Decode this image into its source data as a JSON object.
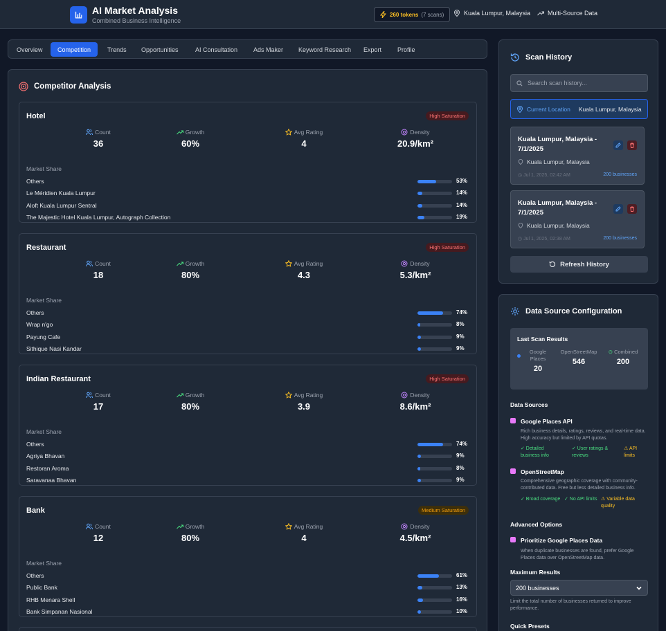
{
  "header": {
    "title": "AI Market Analysis",
    "subtitle": "Combined Business Intelligence",
    "tokens": "260 tokens",
    "scans": "(7 scans)",
    "location": "Kuala Lumpur, Malaysia",
    "data_source": "Multi-Source Data"
  },
  "tabs": [
    {
      "label": "Overview"
    },
    {
      "label": "Competition",
      "active": true
    },
    {
      "label": "Trends"
    },
    {
      "label": "Opportunities"
    },
    {
      "label": "AI Consultation"
    },
    {
      "label": "Ads Maker"
    },
    {
      "label": "Keyword Research"
    },
    {
      "label": "Export"
    },
    {
      "label": "Profile"
    }
  ],
  "competitor": {
    "title": "Competitor Analysis",
    "metric_labels": {
      "count": "Count",
      "growth": "Growth",
      "rating": "Avg Rating",
      "density": "Density"
    },
    "market_share_label": "Market Share",
    "cards": [
      {
        "name": "Hotel",
        "badge": "High Saturation",
        "level": "high",
        "count": "36",
        "growth": "60%",
        "rating": "4",
        "density": "20.9/km²",
        "shares": [
          {
            "name": "Others",
            "pct": "53%",
            "value": 53
          },
          {
            "name": "Le Méridien Kuala Lumpur",
            "pct": "14%",
            "value": 14
          },
          {
            "name": "Aloft Kuala Lumpur Sentral",
            "pct": "14%",
            "value": 14
          },
          {
            "name": "The Majestic Hotel Kuala Lumpur, Autograph Collection",
            "pct": "19%",
            "value": 19
          }
        ]
      },
      {
        "name": "Restaurant",
        "badge": "High Saturation",
        "level": "high",
        "count": "18",
        "growth": "80%",
        "rating": "4.3",
        "density": "5.3/km²",
        "shares": [
          {
            "name": "Others",
            "pct": "74%",
            "value": 74
          },
          {
            "name": "Wrap n'go",
            "pct": "8%",
            "value": 8
          },
          {
            "name": "Payung Cafe",
            "pct": "9%",
            "value": 9
          },
          {
            "name": "Sithique Nasi Kandar",
            "pct": "9%",
            "value": 9
          }
        ]
      },
      {
        "name": "Indian Restaurant",
        "badge": "High Saturation",
        "level": "high",
        "count": "17",
        "growth": "80%",
        "rating": "3.9",
        "density": "8.6/km²",
        "shares": [
          {
            "name": "Others",
            "pct": "74%",
            "value": 74
          },
          {
            "name": "Agriya Bhavan",
            "pct": "9%",
            "value": 9
          },
          {
            "name": "Restoran Aroma",
            "pct": "8%",
            "value": 8
          },
          {
            "name": "Saravanaa Bhavan",
            "pct": "9%",
            "value": 9
          }
        ]
      },
      {
        "name": "Bank",
        "badge": "Medium Saturation",
        "level": "medium",
        "count": "12",
        "growth": "80%",
        "rating": "4",
        "density": "4.5/km²",
        "shares": [
          {
            "name": "Others",
            "pct": "61%",
            "value": 61
          },
          {
            "name": "Public Bank",
            "pct": "13%",
            "value": 13
          },
          {
            "name": "RHB Menara Shell",
            "pct": "16%",
            "value": 16
          },
          {
            "name": "Bank Simpanan Nasional",
            "pct": "10%",
            "value": 10
          }
        ]
      }
    ]
  },
  "history": {
    "title": "Scan History",
    "search_placeholder": "Search scan history...",
    "current_label": "Current Location",
    "current_value": "Kuala Lumpur, Malaysia",
    "scans": [
      {
        "title": "Kuala Lumpur, Malaysia - 7/1/2025",
        "location": "Kuala Lumpur, Malaysia",
        "date": "Jul 1, 2025, 02:42 AM",
        "businesses": "200 businesses"
      },
      {
        "title": "Kuala Lumpur, Malaysia - 7/1/2025",
        "location": "Kuala Lumpur, Malaysia",
        "date": "Jul 1, 2025, 02:38 AM",
        "businesses": "200 businesses"
      }
    ],
    "refresh": "Refresh History"
  },
  "config": {
    "title": "Data Source Configuration",
    "last_scan": {
      "title": "Last Scan Results",
      "google_label": "Google Places",
      "google_value": "20",
      "osm_label": "OpenStreetMap",
      "osm_value": "546",
      "combined_label": "Combined",
      "combined_value": "200"
    },
    "sources_title": "Data Sources",
    "google": {
      "name": "Google Places API",
      "desc": "Rich business details, ratings, reviews, and real-time data. High accuracy but limited by API quotas.",
      "f1": "✓ Detailed business info",
      "f2": "✓ User ratings & reviews",
      "f3": "⚠ API limits"
    },
    "osm": {
      "name": "OpenStreetMap",
      "desc": "Comprehensive geographic coverage with community-contributed data. Free but less detailed business info.",
      "f1": "✓ Broad coverage",
      "f2": "✓ No API limits",
      "f3": "⚠ Variable data quality"
    },
    "advanced_title": "Advanced Options",
    "prioritize": {
      "name": "Prioritize Google Places Data",
      "desc": "When duplicate businesses are found, prefer Google Places data over OpenStreetMap data."
    },
    "max_title": "Maximum Results",
    "max_value": "200 businesses",
    "max_hint": "Limit the total number of businesses returned to improve performance.",
    "presets_title": "Quick Presets"
  }
}
